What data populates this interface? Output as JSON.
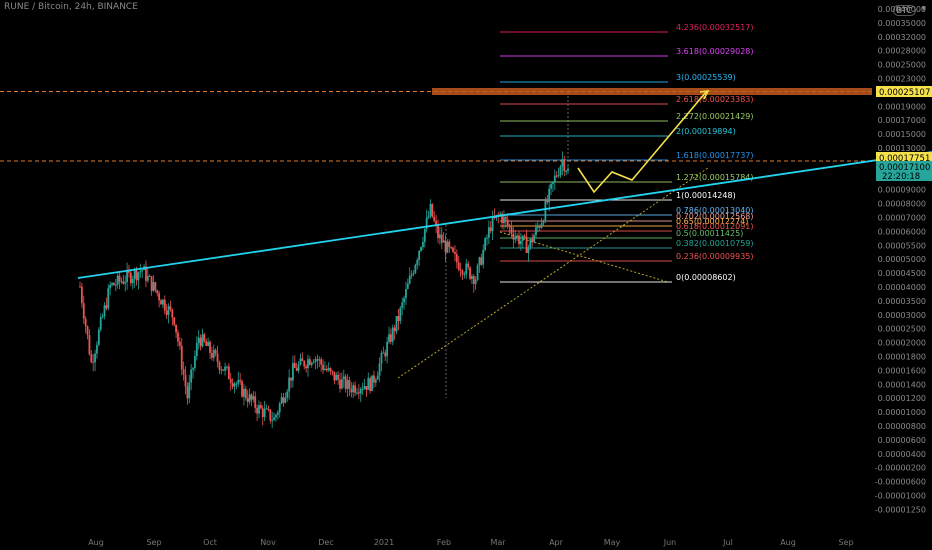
{
  "header": {
    "title": "RUNE / Bitcoin, 24h, BINANCE"
  },
  "scale": {
    "label": "BTC",
    "mode": "log"
  },
  "colors": {
    "background": "#000000",
    "trendline": "#22d3ee",
    "up_candle": "#26a69a",
    "down_candle": "#ef5350",
    "projection": "#f5e14a",
    "dotted_line": "#b8a52a",
    "highlight_band": "#c2591c",
    "dashed_orange": "#e07a2a",
    "axis_text": "#8a8a8a"
  },
  "price_tags": [
    {
      "value": "0.00025107",
      "bg": "#f5e14a",
      "fg": "#000000"
    },
    {
      "value": "0.00017751",
      "bg": "#f5e14a",
      "fg": "#000000"
    },
    {
      "value": "0.00017100",
      "countdown": "22:20:18",
      "bg": "#26a69a",
      "fg": "#000000"
    }
  ],
  "chart_data": {
    "type": "candlestick",
    "title": "RUNE / Bitcoin, 24h, BINANCE",
    "x_axis": {
      "ticks": [
        "Aug",
        "Sep",
        "Oct",
        "Nov",
        "Dec",
        "2021",
        "Feb",
        "Mar",
        "Apr",
        "May",
        "Jun",
        "Jul",
        "Aug",
        "Sep"
      ]
    },
    "y_axis": {
      "scale": "log",
      "ticks": [
        "0.00040000",
        "0.00035000",
        "0.00032000",
        "0.00028000",
        "0.00025000",
        "0.00023000",
        "0.00021000",
        "0.00019000",
        "0.00017000",
        "0.00015000",
        "0.00013000",
        "0.00011500",
        "0.00010000",
        "0.00009000",
        "0.00008000",
        "0.00007000",
        "0.00006000",
        "0.00005500",
        "0.00005000",
        "0.00004500",
        "0.00004000",
        "0.00003500",
        "0.00003000",
        "0.00002500",
        "0.00002000",
        "0.00001800",
        "0.00001600",
        "0.00001400",
        "0.00001200",
        "0.00001000",
        "0.00000800",
        "0.00000600",
        "0.00000400",
        "-0.00000200",
        "-0.00000600",
        "-0.00001000",
        "-0.00001250"
      ]
    },
    "price_path": [
      [
        "2020-07-30",
        6e-05
      ],
      [
        "2020-08-05",
        3e-05
      ],
      [
        "2020-08-15",
        6e-05
      ],
      [
        "2020-09-01",
        7e-05
      ],
      [
        "2020-09-10",
        5.5e-05
      ],
      [
        "2020-09-18",
        4.5e-05
      ],
      [
        "2020-09-25",
        2.2e-05
      ],
      [
        "2020-10-01",
        3.8e-05
      ],
      [
        "2020-10-15",
        2.8e-05
      ],
      [
        "2020-11-01",
        2e-05
      ],
      [
        "2020-11-10",
        1.8e-05
      ],
      [
        "2020-11-20",
        2.8e-05
      ],
      [
        "2020-12-01",
        3.2e-05
      ],
      [
        "2020-12-10",
        2.7e-05
      ],
      [
        "2020-12-20",
        2.4e-05
      ],
      [
        "2021-01-01",
        2.5e-05
      ],
      [
        "2021-01-15",
        4.5e-05
      ],
      [
        "2021-01-25",
        8e-05
      ],
      [
        "2021-02-01",
        0.00012
      ],
      [
        "2021-02-05",
        9.5e-05
      ],
      [
        "2021-02-15",
        7.5e-05
      ],
      [
        "2021-02-25",
        6.5e-05
      ],
      [
        "2021-03-05",
        0.000105
      ],
      [
        "2021-03-10",
        0.000115
      ],
      [
        "2021-03-18",
        9.5e-05
      ],
      [
        "2021-03-25",
        8.6e-05
      ],
      [
        "2021-04-01",
        0.00011
      ],
      [
        "2021-04-08",
        0.00016
      ],
      [
        "2021-04-12",
        0.00019
      ],
      [
        "2021-04-15",
        0.000171
      ]
    ],
    "fib_levels": [
      {
        "label": "4.236(0.00032517)",
        "color": "#e91e63"
      },
      {
        "label": "3.618(0.00029028)",
        "color": "#e040fb"
      },
      {
        "label": "3(0.00025539)",
        "color": "#29b6f6"
      },
      {
        "label": "2.618(0.00023383)",
        "color": "#ef5350"
      },
      {
        "label": "2.272(0.00021429)",
        "color": "#9ccc65"
      },
      {
        "label": "2(0.00019894)",
        "color": "#26c6da"
      },
      {
        "label": "1.618(0.00017737)",
        "color": "#2196f3"
      },
      {
        "label": "1.272(0.00015784)",
        "color": "#9ccc65"
      },
      {
        "label": "1(0.00014248)",
        "color": "#ffffff"
      },
      {
        "label": "0.786(0.00013040)",
        "color": "#64b5f6"
      },
      {
        "label": "0.702(0.00012568)",
        "color": "#ef9a9a"
      },
      {
        "label": "0.65(0.00012274)",
        "color": "#ffb74d"
      },
      {
        "label": "0.618(0.00012091)",
        "color": "#ef5350"
      },
      {
        "label": "0.5(0.00011425)",
        "color": "#66bb6a"
      },
      {
        "label": "0.382(0.00010759)",
        "color": "#26a69a"
      },
      {
        "label": "0.236(0.00009935)",
        "color": "#ef5350"
      },
      {
        "label": "0(0.00008602)",
        "color": "#ffffff"
      }
    ],
    "trendline": {
      "from": [
        "2020-07-30",
        6.5e-05
      ],
      "to": [
        "2021-09-30",
        0.000178
      ]
    },
    "projection_path": [
      [
        "2021-04-18",
        0.000171
      ],
      [
        "2021-04-25",
        0.000152
      ],
      [
        "2021-05-05",
        0.00017
      ],
      [
        "2021-05-12",
        0.000165
      ],
      [
        "2021-06-10",
        0.000251
      ]
    ],
    "legend": "none",
    "grid": false
  }
}
